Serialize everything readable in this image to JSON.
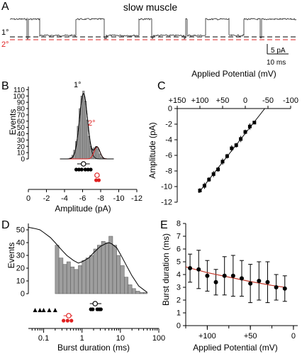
{
  "colors": {
    "primary": "#000000",
    "secondary": "#e02020",
    "fill": "#9e9e9e",
    "fit": "#c0392b"
  },
  "chart_data": [
    {
      "panel": "A",
      "type": "line",
      "title": "slow muscle",
      "labels": {
        "primary_level": "1°",
        "secondary_level": "2°"
      },
      "scalebar": {
        "y_label": "5 pA",
        "x_label": "10 ms"
      }
    },
    {
      "panel": "B",
      "type": "bar",
      "ylabel": "Events",
      "xlabel": "Amplitude (pA)",
      "yticks": [
        0,
        10,
        20,
        30,
        40,
        50,
        60,
        70,
        80,
        90,
        100,
        110
      ],
      "xticks": [
        0,
        -2,
        -4,
        -6,
        -8,
        -10,
        -12
      ],
      "xlim": [
        0,
        -12
      ],
      "ylim": [
        0,
        115
      ],
      "peak_labels": {
        "primary": "1°",
        "secondary": "2°"
      },
      "histogram": {
        "bin_centers": [
          -4.7,
          -4.9,
          -5.1,
          -5.3,
          -5.5,
          -5.7,
          -5.9,
          -6.1,
          -6.3,
          -6.5,
          -6.7,
          -6.9,
          -7.1,
          -7.3,
          -7.5,
          -7.7,
          -7.9,
          -8.1,
          -8.3
        ],
        "counts": [
          2,
          6,
          14,
          28,
          52,
          80,
          100,
          108,
          92,
          62,
          36,
          20,
          16,
          18,
          20,
          16,
          8,
          3,
          1
        ],
        "bin_width": 0.2
      },
      "fits": [
        {
          "name": "1°",
          "mean": -6.1,
          "sd": 0.45,
          "amp": 104
        },
        {
          "name": "2°",
          "mean": -7.6,
          "sd": 0.32,
          "amp": 19
        }
      ],
      "dots": {
        "primary_open": -6.1,
        "primary_filled": [
          -5.3,
          -5.6,
          -5.9,
          -6.3,
          -6.6,
          -6.9
        ],
        "secondary_open": -7.6,
        "secondary_filled": [
          -7.5,
          -7.8
        ]
      }
    },
    {
      "panel": "C",
      "type": "scatter",
      "xlabel": "Applied Potential (mV)",
      "ylabel": "Amplitude (pA)",
      "xticks": [
        150,
        100,
        50,
        0,
        -50,
        -100
      ],
      "xlim": [
        150,
        -100
      ],
      "yticks": [
        0,
        -2,
        -4,
        -6,
        -8,
        -10,
        -12
      ],
      "ylim": [
        -12,
        0
      ],
      "x": [
        100,
        90,
        80,
        70,
        60,
        50,
        40,
        30,
        20,
        10,
        0,
        -10,
        -20
      ],
      "y": [
        -10.5,
        -9.9,
        -9.1,
        -8.4,
        -7.8,
        -6.8,
        -6.1,
        -5.1,
        -4.7,
        -3.9,
        -3.0,
        -2.3,
        -1.8
      ],
      "err": [
        0.3,
        0.4,
        0.3,
        0.4,
        0.3,
        0.4,
        0.3,
        0.4,
        0.3,
        0.4,
        0.3,
        0.4,
        0.2
      ],
      "fit_line": {
        "x": [
          103,
          -43
        ],
        "y": [
          -10.8,
          0
        ]
      }
    },
    {
      "panel": "D",
      "type": "bar",
      "ylabel": "Events",
      "xlabel": "Burst duration (ms)",
      "yticks": [
        0,
        10,
        20,
        30,
        40,
        50
      ],
      "ylim": [
        0,
        55
      ],
      "xscale": "log",
      "xticks": [
        0.1,
        1,
        10,
        100
      ],
      "xlim": [
        0.04,
        100
      ],
      "histogram": {
        "bin_edges": [
          0.2,
          0.25,
          0.32,
          0.4,
          0.5,
          0.63,
          0.8,
          1.0,
          1.26,
          1.58,
          2.0,
          2.5,
          3.2,
          4.0,
          5.0,
          6.3,
          8.0,
          10,
          12.6,
          15.8,
          20,
          25,
          32,
          40,
          50
        ],
        "counts": [
          38,
          28,
          23,
          25,
          21,
          19,
          22,
          26,
          28,
          30,
          35,
          38,
          41,
          40,
          45,
          38,
          30,
          22,
          13,
          7,
          4,
          2,
          1,
          1
        ]
      },
      "fit_curve": {
        "x": [
          0.04,
          0.06,
          0.08,
          0.1,
          0.15,
          0.2,
          0.3,
          0.4,
          0.6,
          0.8,
          1.0,
          1.5,
          2,
          3,
          4,
          5,
          6,
          8,
          10,
          15,
          20,
          30,
          50
        ],
        "y": [
          52,
          51,
          50,
          48,
          44,
          40,
          34,
          30,
          26,
          24,
          25,
          28,
          32,
          37,
          39,
          40,
          39,
          36,
          31,
          21,
          14,
          6,
          1
        ]
      },
      "dots": {
        "triangles": [
          0.06,
          0.08,
          0.1,
          0.14,
          0.2
        ],
        "primary_open": 2.2,
        "primary_filled": [
          1.7,
          1.9,
          2.5,
          2.8,
          3.1
        ],
        "secondary_open": 0.45,
        "secondary_filled": [
          0.33,
          0.42,
          0.53
        ]
      }
    },
    {
      "panel": "E",
      "type": "scatter",
      "xlabel": "Applied Potential (mV)",
      "ylabel": "Burst duration (ms)",
      "xticks": [
        100,
        50,
        0
      ],
      "xtick_labels": [
        "+100",
        "+50",
        "0"
      ],
      "xlim": [
        125,
        -5
      ],
      "yticks": [
        0,
        1,
        2,
        3,
        4,
        5,
        6,
        7,
        8
      ],
      "ylim": [
        0,
        8
      ],
      "x": [
        120,
        110,
        100,
        90,
        80,
        70,
        60,
        50,
        40,
        30,
        20,
        10
      ],
      "y": [
        4.5,
        4.4,
        3.9,
        3.4,
        3.9,
        3.9,
        3.7,
        3.3,
        3.5,
        3.4,
        3.0,
        2.9
      ],
      "err": [
        1.1,
        1.5,
        1.2,
        1.0,
        1.5,
        1.6,
        1.4,
        1.5,
        1.5,
        1.6,
        1.0,
        1.0
      ],
      "fit_curve": {
        "x": [
          125,
          100,
          75,
          50,
          25,
          10
        ],
        "y": [
          4.6,
          4.15,
          3.8,
          3.45,
          3.15,
          3.0
        ]
      }
    }
  ]
}
